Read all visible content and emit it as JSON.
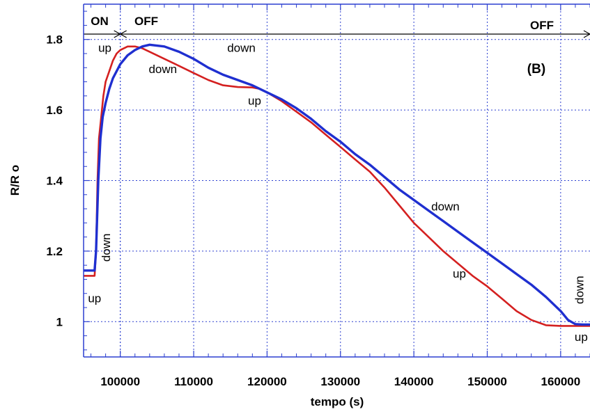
{
  "chart_data": {
    "type": "line",
    "title": "",
    "panel_label": "(B)",
    "xlabel": "tempo (s)",
    "ylabel": "R/R o",
    "xlim": [
      95000,
      164000
    ],
    "ylim": [
      0.9,
      1.9
    ],
    "x_ticks": [
      100000,
      110000,
      120000,
      130000,
      140000,
      150000,
      160000
    ],
    "x_tick_labels": [
      "100000",
      "110000",
      "120000",
      "130000",
      "140000",
      "150000",
      "160000"
    ],
    "y_ticks": [
      1,
      1.2,
      1.4,
      1.6,
      1.8
    ],
    "y_tick_labels": [
      "1",
      "1.2",
      "1.4",
      "1.6",
      "1.8"
    ],
    "grid": true,
    "phases": [
      {
        "label": "ON",
        "x_start": 95000,
        "x_end": 100000
      },
      {
        "label": "OFF",
        "x_start": 100000,
        "x_end": 164000
      },
      {
        "label": "OFF",
        "x_start": 100000,
        "x_end": 164000
      }
    ],
    "series": [
      {
        "color": "#d42020",
        "x": [
          95000,
          96500,
          96700,
          96900,
          97100,
          97400,
          97700,
          98000,
          98500,
          99000,
          99500,
          100000,
          101000,
          102000,
          103000,
          104000,
          106000,
          108000,
          110000,
          112000,
          114000,
          116000,
          118000,
          119000,
          120000,
          122000,
          124000,
          126000,
          128000,
          130000,
          132000,
          134000,
          136000,
          138000,
          140000,
          142000,
          144000,
          146000,
          148000,
          150000,
          152000,
          154000,
          156000,
          158000,
          160000,
          162000,
          164000
        ],
        "y": [
          1.13,
          1.13,
          1.2,
          1.4,
          1.52,
          1.58,
          1.64,
          1.68,
          1.71,
          1.74,
          1.76,
          1.77,
          1.78,
          1.78,
          1.775,
          1.765,
          1.745,
          1.725,
          1.705,
          1.685,
          1.67,
          1.665,
          1.664,
          1.66,
          1.65,
          1.625,
          1.595,
          1.565,
          1.53,
          1.495,
          1.46,
          1.425,
          1.38,
          1.33,
          1.28,
          1.24,
          1.2,
          1.165,
          1.13,
          1.1,
          1.065,
          1.03,
          1.005,
          0.99,
          0.988,
          0.988,
          0.988
        ]
      },
      {
        "color": "#1f2fd0",
        "x": [
          95000,
          96500,
          96700,
          97000,
          97300,
          97600,
          98000,
          98500,
          99000,
          100000,
          101000,
          102000,
          103000,
          104000,
          106000,
          108000,
          110000,
          112000,
          114000,
          116000,
          118000,
          120000,
          122000,
          124000,
          126000,
          128000,
          130000,
          132000,
          134000,
          136000,
          138000,
          140000,
          142000,
          144000,
          146000,
          148000,
          150000,
          152000,
          154000,
          156000,
          158000,
          160000,
          161000,
          162000,
          163000,
          164000
        ],
        "y": [
          1.145,
          1.145,
          1.2,
          1.4,
          1.52,
          1.58,
          1.62,
          1.66,
          1.69,
          1.73,
          1.755,
          1.77,
          1.78,
          1.785,
          1.78,
          1.765,
          1.745,
          1.72,
          1.7,
          1.685,
          1.67,
          1.65,
          1.63,
          1.605,
          1.575,
          1.54,
          1.51,
          1.475,
          1.445,
          1.41,
          1.375,
          1.345,
          1.315,
          1.285,
          1.255,
          1.225,
          1.195,
          1.165,
          1.135,
          1.105,
          1.07,
          1.03,
          1.005,
          0.993,
          0.992,
          0.992
        ]
      }
    ],
    "annotations": [
      {
        "text": "up",
        "x": 97900,
        "y": 1.765,
        "rotate": 0
      },
      {
        "text": "down",
        "x": 105800,
        "y": 1.705,
        "rotate": 0
      },
      {
        "text": "down",
        "x": 116500,
        "y": 1.765,
        "rotate": 0
      },
      {
        "text": "up",
        "x": 118300,
        "y": 1.615,
        "rotate": 0
      },
      {
        "text": "down",
        "x": 98600,
        "y": 1.21,
        "rotate": -90
      },
      {
        "text": "up",
        "x": 96500,
        "y": 1.055,
        "rotate": 0
      },
      {
        "text": "down",
        "x": 144300,
        "y": 1.315,
        "rotate": 0
      },
      {
        "text": "up",
        "x": 146200,
        "y": 1.125,
        "rotate": 0
      },
      {
        "text": "down",
        "x": 163100,
        "y": 1.09,
        "rotate": -90
      },
      {
        "text": "up",
        "x": 162800,
        "y": 0.945,
        "rotate": 0
      }
    ]
  }
}
